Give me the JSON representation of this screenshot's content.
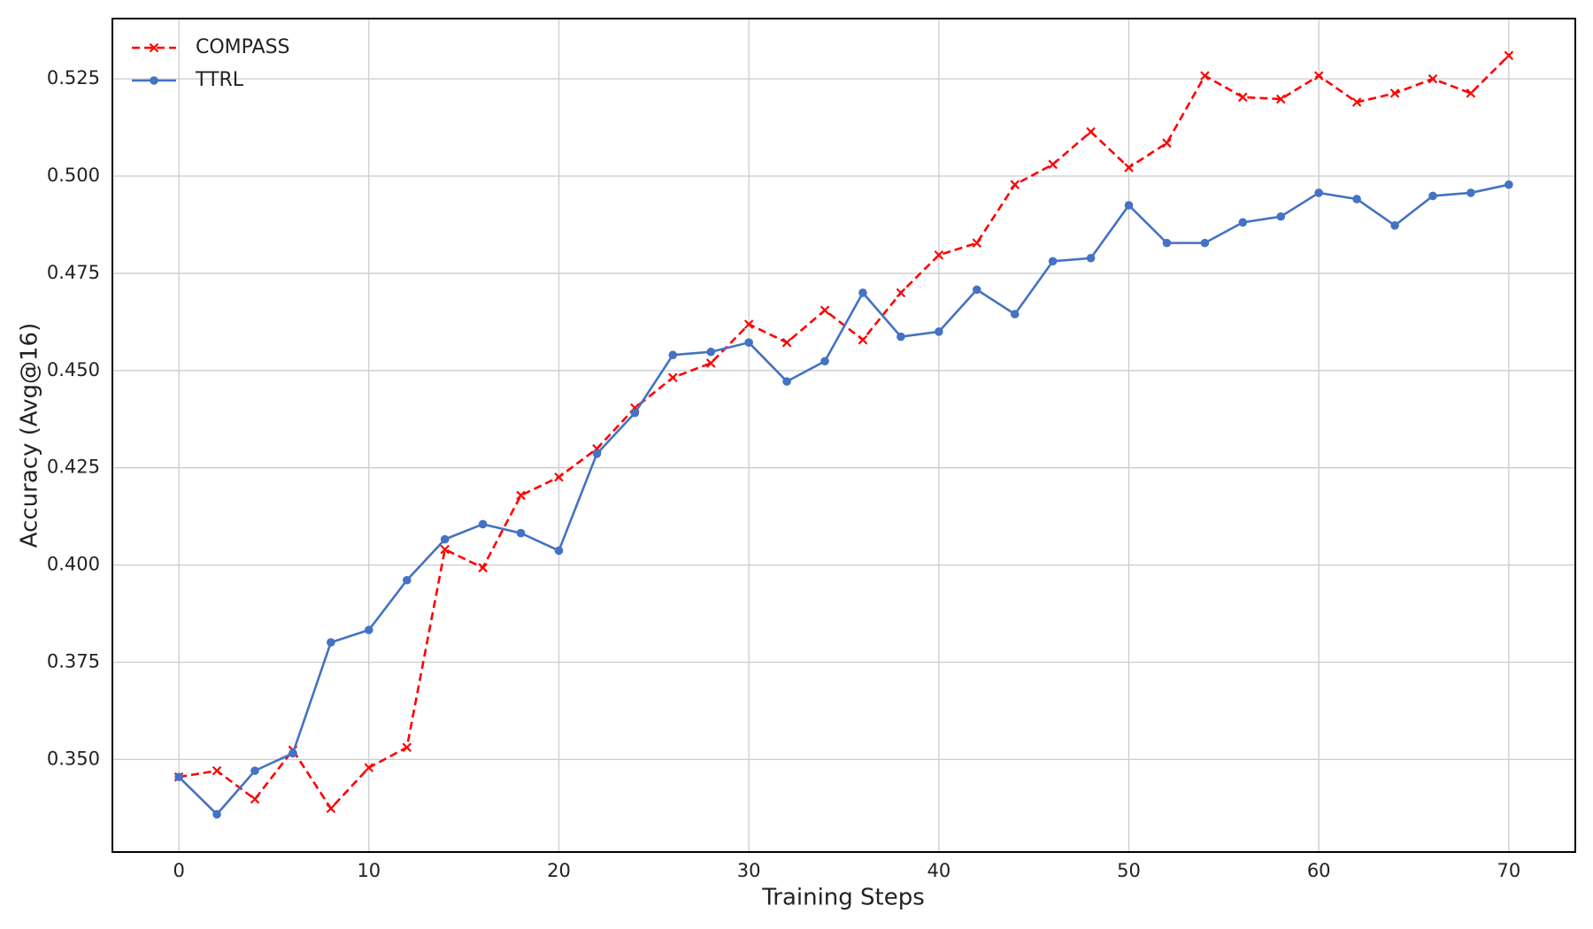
{
  "chart_data": {
    "type": "line",
    "xlabel": "Training Steps",
    "ylabel": "Accuracy (Avg@16)",
    "x": [
      0,
      2,
      4,
      6,
      8,
      10,
      12,
      14,
      16,
      18,
      20,
      22,
      24,
      26,
      28,
      30,
      32,
      34,
      36,
      38,
      40,
      42,
      44,
      46,
      48,
      50,
      52,
      54,
      56,
      58,
      60,
      62,
      64,
      66,
      68,
      70
    ],
    "series": [
      {
        "name": "COMPASS",
        "color": "#ff0000",
        "dashed": true,
        "marker": "x",
        "values": [
          0.3455,
          0.3471,
          0.3398,
          0.3524,
          0.3374,
          0.3479,
          0.3531,
          0.404,
          0.3993,
          0.4179,
          0.4226,
          0.4299,
          0.4404,
          0.4482,
          0.4519,
          0.4619,
          0.4572,
          0.4655,
          0.4579,
          0.47,
          0.4797,
          0.4828,
          0.4978,
          0.503,
          0.5114,
          0.5022,
          0.5085,
          0.5258,
          0.5203,
          0.5198,
          0.5258,
          0.519,
          0.5213,
          0.525,
          0.5213,
          0.531
        ]
      },
      {
        "name": "TTRL",
        "color": "#4472c4",
        "dashed": false,
        "marker": "o",
        "values": [
          0.3455,
          0.3359,
          0.3471,
          0.3516,
          0.3801,
          0.3833,
          0.3961,
          0.4066,
          0.4105,
          0.4082,
          0.4037,
          0.4286,
          0.4391,
          0.454,
          0.4548,
          0.4572,
          0.4472,
          0.4524,
          0.47,
          0.4587,
          0.46,
          0.4708,
          0.4645,
          0.4781,
          0.4789,
          0.4925,
          0.4828,
          0.4828,
          0.4881,
          0.4896,
          0.4957,
          0.4941,
          0.4873,
          0.4949,
          0.4957,
          0.4978
        ]
      }
    ],
    "xlim": [
      -3.5,
      73.5
    ],
    "ylim": [
      0.3262,
      0.5405
    ],
    "xticks": [
      0,
      10,
      20,
      30,
      40,
      50,
      60,
      70
    ],
    "yticks": [
      {
        "value": 0.35,
        "label": "0.350"
      },
      {
        "value": 0.375,
        "label": "0.375"
      },
      {
        "value": 0.4,
        "label": "0.400"
      },
      {
        "value": 0.425,
        "label": "0.425"
      },
      {
        "value": 0.45,
        "label": "0.450"
      },
      {
        "value": 0.475,
        "label": "0.475"
      },
      {
        "value": 0.5,
        "label": "0.500"
      },
      {
        "value": 0.525,
        "label": "0.525"
      }
    ],
    "grid": true,
    "legend": "upper left"
  }
}
